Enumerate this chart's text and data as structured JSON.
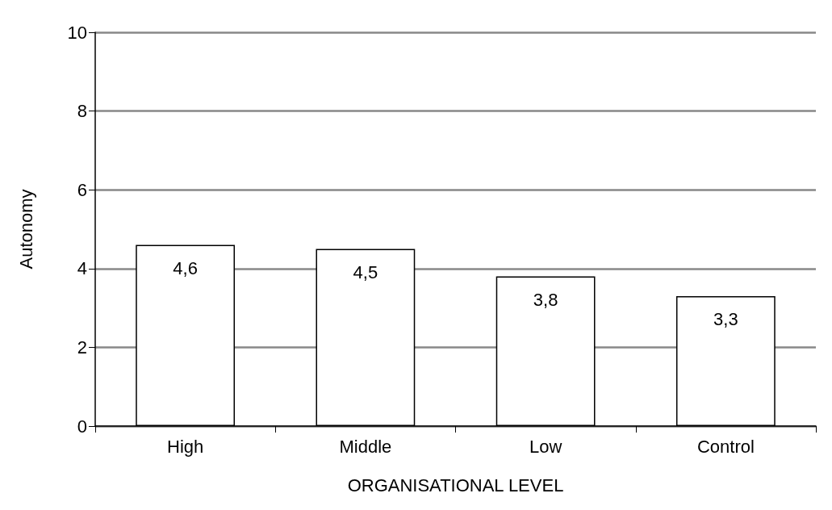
{
  "chart_data": {
    "type": "bar",
    "xlabel": "ORGANISATIONAL LEVEL",
    "ylabel": "Autonomy",
    "categories": [
      "High",
      "Middle",
      "Low",
      "Control"
    ],
    "values": [
      4.6,
      4.5,
      3.8,
      3.3
    ],
    "value_labels": [
      "4,6",
      "4,5",
      "3,8",
      "3,3"
    ],
    "color": "#ffffff",
    "ylim": [
      0,
      10
    ],
    "yticks": [
      0,
      2,
      4,
      6,
      8,
      10
    ],
    "grid": "y"
  }
}
